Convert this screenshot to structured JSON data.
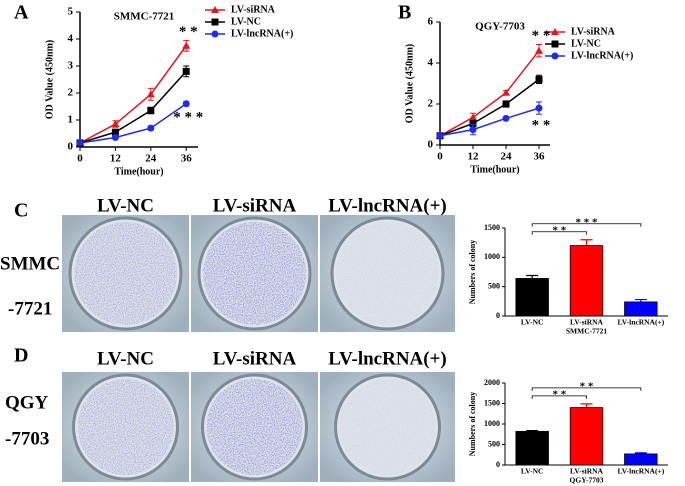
{
  "chart_data": [
    {
      "type": "line",
      "title": "SMMC-7721",
      "x_label": "Time(hour)",
      "y_label": "OD Value (450nm)",
      "x": [
        0,
        12,
        24,
        36
      ],
      "xlim": [
        0,
        40
      ],
      "xticks": [
        0,
        12,
        24,
        36
      ],
      "ylim": [
        0,
        5
      ],
      "yticks": [
        0,
        1,
        2,
        3,
        4,
        5
      ],
      "series": [
        {
          "name": "LV-siRNA",
          "color": "#e8161b",
          "marker": "triangle",
          "values": [
            0.15,
            0.85,
            1.95,
            3.75
          ],
          "errors": [
            0.05,
            0.12,
            0.22,
            0.2
          ]
        },
        {
          "name": "LV-NC",
          "color": "#000000",
          "marker": "square",
          "values": [
            0.15,
            0.55,
            1.35,
            2.8
          ],
          "errors": [
            0.05,
            0.08,
            0.12,
            0.2
          ]
        },
        {
          "name": "LV-lncRNA(+)",
          "color": "#1f2ce8",
          "marker": "circle",
          "values": [
            0.15,
            0.35,
            0.7,
            1.6
          ],
          "errors": [
            0.05,
            0.05,
            0.06,
            0.08
          ]
        }
      ],
      "annotations": [
        "* *",
        "* * *"
      ]
    },
    {
      "type": "line",
      "title": "QGY-7703",
      "x_label": "Time(hour)",
      "y_label": "OD Value (450nm)",
      "x": [
        0,
        12,
        24,
        36
      ],
      "xlim": [
        0,
        40
      ],
      "xticks": [
        0,
        12,
        24,
        36
      ],
      "ylim": [
        0,
        6
      ],
      "yticks": [
        0,
        2,
        4,
        6
      ],
      "series": [
        {
          "name": "LV-siRNA",
          "color": "#e8161b",
          "marker": "triangle",
          "values": [
            0.45,
            1.35,
            2.55,
            4.6
          ],
          "errors": [
            0.05,
            0.2,
            0.1,
            0.3
          ]
        },
        {
          "name": "LV-NC",
          "color": "#000000",
          "marker": "square",
          "values": [
            0.45,
            1.05,
            2.0,
            3.2
          ],
          "errors": [
            0.05,
            0.15,
            0.15,
            0.2
          ]
        },
        {
          "name": "LV-lncRNA(+)",
          "color": "#1f2ce8",
          "marker": "circle",
          "values": [
            0.45,
            0.75,
            1.3,
            1.8
          ],
          "errors": [
            0.05,
            0.25,
            0.05,
            0.3
          ]
        }
      ],
      "annotations": [
        "* *",
        "* *"
      ]
    },
    {
      "type": "bar",
      "x_label": "SMMC-7721",
      "y_label": "Numbers of colony",
      "categories": [
        "LV-NC",
        "LV-siRNA",
        "LV-lncRNA(+)"
      ],
      "values": [
        640,
        1200,
        240
      ],
      "errors": [
        50,
        100,
        40
      ],
      "colors": [
        "#000000",
        "#ff0000",
        "#0000ff"
      ],
      "ylim": [
        0,
        1500
      ],
      "yticks": [
        0,
        500,
        1000,
        1500
      ],
      "brackets": [
        {
          "label": "* *",
          "from": "LV-NC",
          "to": "LV-siRNA"
        },
        {
          "label": "* * *",
          "from": "LV-NC",
          "to": "LV-lncRNA(+)"
        }
      ]
    },
    {
      "type": "bar",
      "x_label": "QGY-7703",
      "y_label": "Numbers of colony",
      "categories": [
        "LV-NC",
        "LV-siRNA",
        "LV-lncRNA(+)"
      ],
      "values": [
        820,
        1400,
        270
      ],
      "errors": [
        20,
        90,
        25
      ],
      "colors": [
        "#000000",
        "#ff0000",
        "#0000ff"
      ],
      "ylim": [
        0,
        2000
      ],
      "yticks": [
        0,
        500,
        1000,
        1500,
        2000
      ],
      "brackets": [
        {
          "label": "* *",
          "from": "LV-NC",
          "to": "LV-siRNA"
        },
        {
          "label": "* *",
          "from": "LV-NC",
          "to": "LV-lncRNA(+)"
        }
      ]
    }
  ],
  "figure": {
    "panel_labels": [
      "A",
      "B",
      "C",
      "D"
    ],
    "photo_rows": [
      {
        "label_lines": [
          "SMMC",
          "-7721"
        ],
        "columns": [
          "LV-NC",
          "LV-siRNA",
          "LV-lncRNA(+)"
        ]
      },
      {
        "label_lines": [
          "QGY",
          "-7703"
        ],
        "columns": [
          "LV-NC",
          "LV-siRNA",
          "LV-lncRNA(+)"
        ]
      }
    ]
  }
}
